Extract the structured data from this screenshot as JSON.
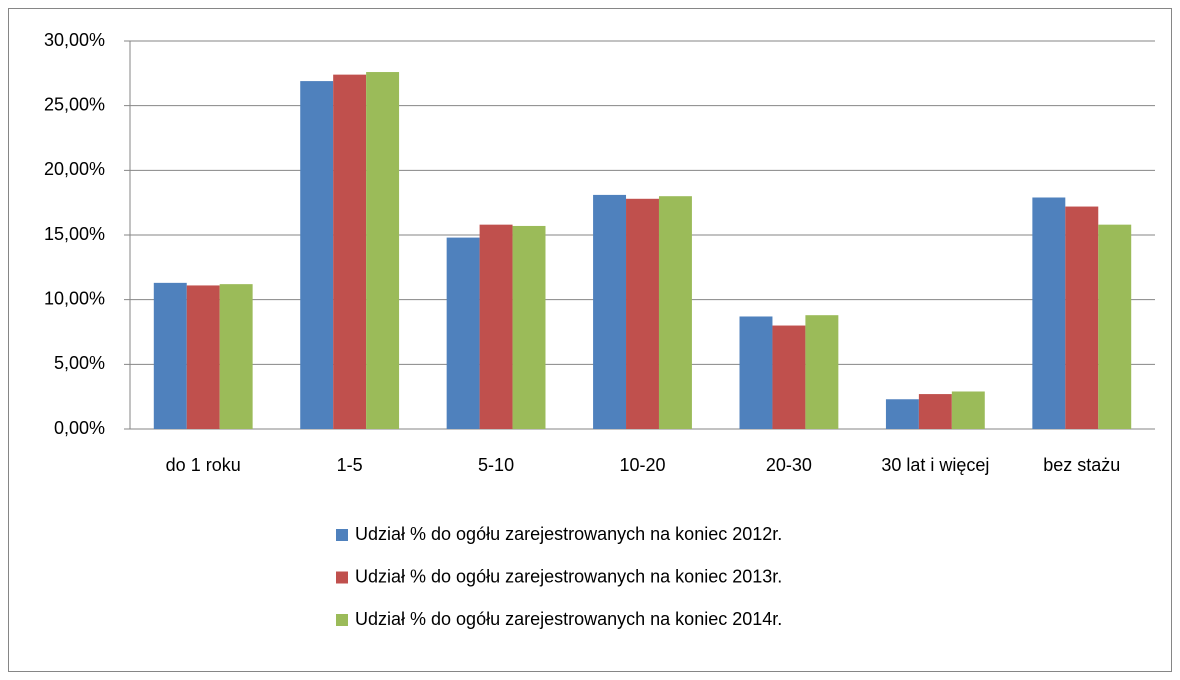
{
  "chart_data": {
    "type": "bar",
    "categories": [
      "do 1 roku",
      "1-5",
      "5-10",
      "10-20",
      "20-30",
      "30 lat i więcej",
      "bez stażu"
    ],
    "series": [
      {
        "name": "Udział % do ogółu zarejestrowanych na koniec 2012r.",
        "color": "#4f81bd",
        "values": [
          11.3,
          26.9,
          14.8,
          18.1,
          8.7,
          2.3,
          17.9
        ]
      },
      {
        "name": "Udział % do ogółu zarejestrowanych na koniec 2013r.",
        "color": "#c0504d",
        "values": [
          11.1,
          27.4,
          15.8,
          17.8,
          8.0,
          2.7,
          17.2
        ]
      },
      {
        "name": "Udział % do ogółu zarejestrowanych na koniec 2014r.",
        "color": "#9bbb59",
        "values": [
          11.2,
          27.6,
          15.7,
          18.0,
          8.8,
          2.9,
          15.8
        ]
      }
    ],
    "ylim": [
      0,
      30
    ],
    "yticks": [
      {
        "value": 0,
        "label": "0,00%"
      },
      {
        "value": 5,
        "label": "5,00%"
      },
      {
        "value": 10,
        "label": "10,00%"
      },
      {
        "value": 15,
        "label": "15,00%"
      },
      {
        "value": 20,
        "label": "20,00%"
      },
      {
        "value": 25,
        "label": "25,00%"
      },
      {
        "value": 30,
        "label": "30,00%"
      }
    ],
    "grid": true,
    "legend": "bottom"
  }
}
